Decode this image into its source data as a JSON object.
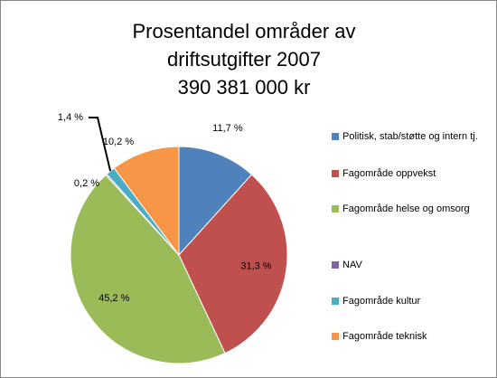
{
  "chart_data": {
    "type": "pie",
    "title": [
      "Prosentandel områder av",
      "driftsutgifter 2007",
      "390 381 000 kr"
    ],
    "categories": [
      "Politisk, stab/støtte og intern tj.",
      "Fagområde oppvekst",
      "Fagområde helse og omsorg",
      "NAV",
      "Fagområde kultur",
      "Fagområde teknisk"
    ],
    "values": [
      11.7,
      31.3,
      45.2,
      0.2,
      1.4,
      10.2
    ],
    "value_labels": [
      "11,7 %",
      "31,3 %",
      "45,2 %",
      "0,2 %",
      "1,4 %",
      "10,2 %"
    ],
    "colors": [
      "#4f81bd",
      "#c0504d",
      "#9bbb59",
      "#8064a2",
      "#4bacc6",
      "#f79646"
    ],
    "legend": "right"
  }
}
